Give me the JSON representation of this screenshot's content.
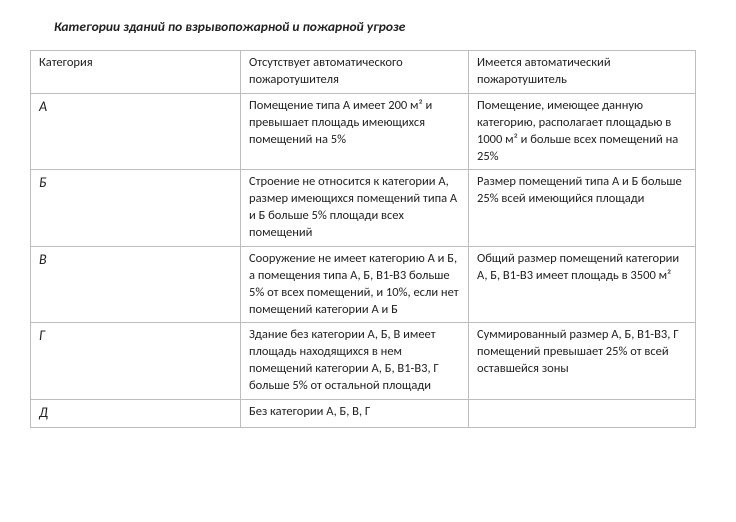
{
  "title": "Категории зданий по взрывопожарной и пожарной угрозе",
  "header": {
    "category": "Категория",
    "no_auto": "Отсутствует автоматического пожаротушителя",
    "has_auto": "Имеется автоматический пожаротушитель"
  },
  "rows": [
    {
      "cat": "А",
      "no_auto": "Помещение типа А имеет 200 м² и превышает площадь имеющихся помещений на 5%",
      "has_auto": "Помещение, имеющее данную категорию, располагает площадью в 1000 м² и больше всех помещений на 25%"
    },
    {
      "cat": "Б",
      "no_auto": "Строение не относится к категории А, размер имеющихся помещений типа А и Б больше 5% площади всех помещений",
      "has_auto": "Размер помещений типа А и Б больше 25% всей имеющийся площади"
    },
    {
      "cat": "В",
      "no_auto": "Сооружение не имеет категорию А и Б, а помещения типа А, Б, В1-В3 больше 5% от всех помещений, и 10%, если нет помещений категории А и Б",
      "has_auto": "Общий размер помещений категории А, Б, В1-В3 имеет площадь в 3500 м²"
    },
    {
      "cat": "Г",
      "no_auto": "Здание без категории А, Б, В имеет площадь находящихся в нем помещений категории А, Б, В1-В3, Г больше 5% от остальной площади",
      "has_auto": "Суммированный размер А, Б, В1-В3, Г помещений превышает 25% от всей оставшейся зоны"
    },
    {
      "cat": "Д",
      "no_auto": "Без категории А, Б, В, Г",
      "has_auto": ""
    }
  ]
}
